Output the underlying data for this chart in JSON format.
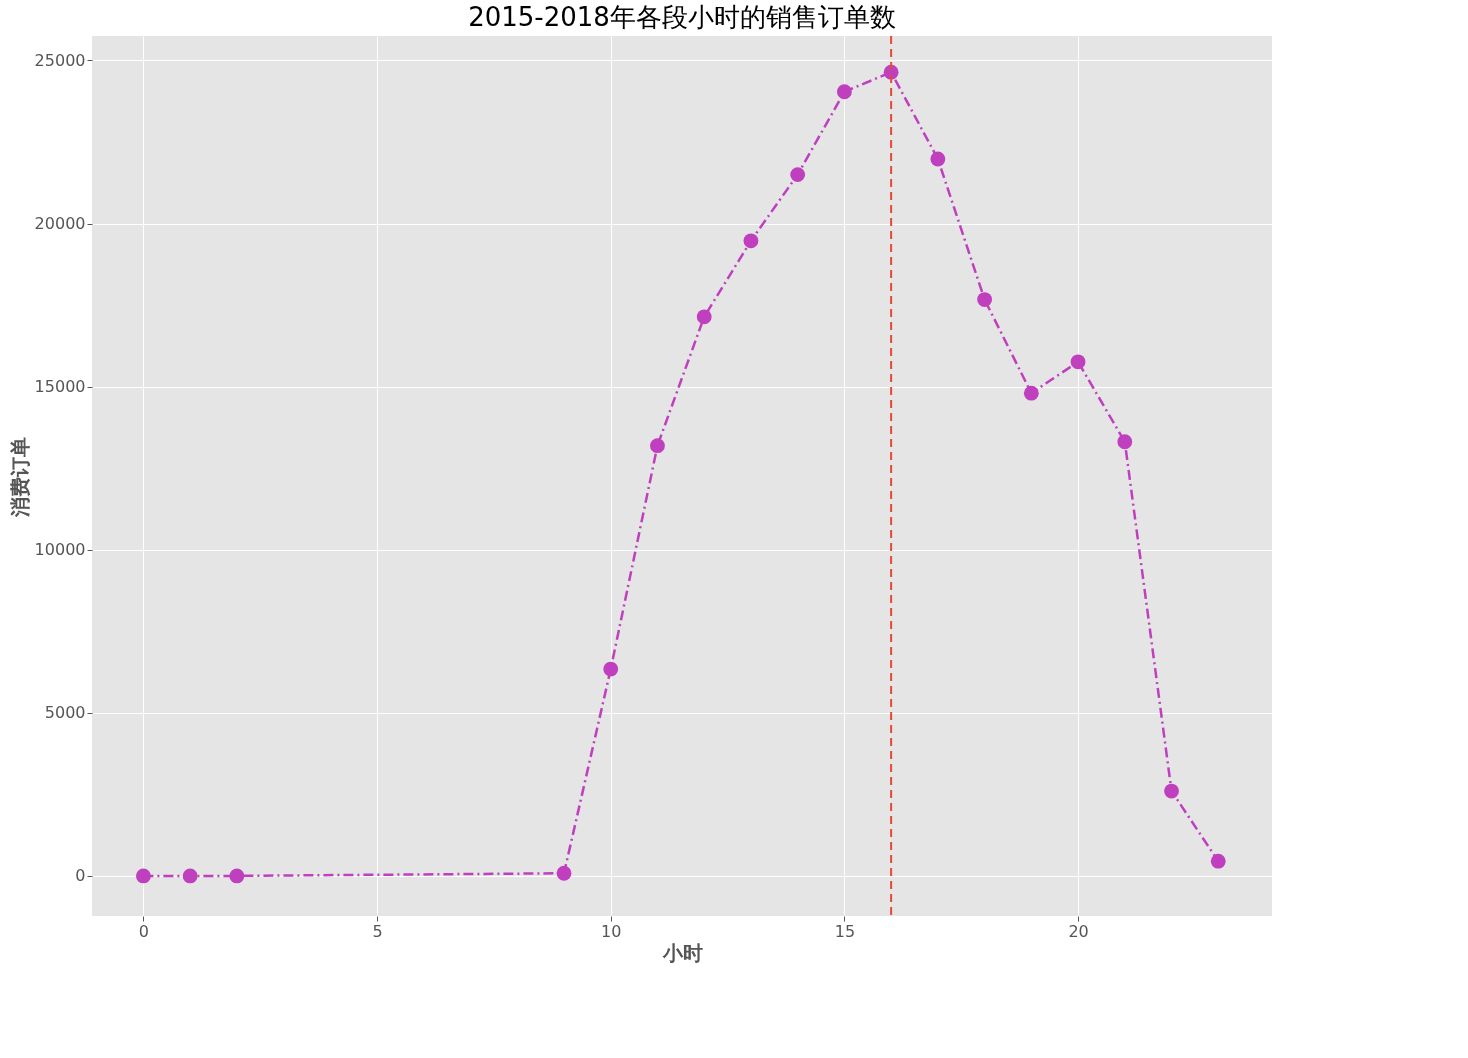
{
  "chart_data": {
    "type": "line",
    "title": "2015-2018年各段小时的销售订单数",
    "xlabel": "小时",
    "ylabel": "消费订单",
    "x": [
      0,
      1,
      2,
      9,
      10,
      11,
      12,
      13,
      14,
      15,
      16,
      17,
      18,
      19,
      20,
      21,
      22,
      23
    ],
    "series": [
      {
        "color": "#bf3fbf",
        "values": [
          0,
          0,
          0,
          80,
          6340,
          13190,
          17140,
          19470,
          21500,
          24040,
          24640,
          21980,
          17670,
          14800,
          15760,
          13310,
          2600,
          450
        ]
      }
    ],
    "xlim": [
      -1.1,
      24.15
    ],
    "ylim": [
      -1230,
      25750
    ],
    "xticks": [
      0,
      5,
      10,
      15,
      20
    ],
    "yticks": [
      0,
      5000,
      10000,
      15000,
      20000,
      25000
    ],
    "ref_lines": [
      {
        "axis": "x",
        "value": 16,
        "color": "#e24a33",
        "line_style": "dashed"
      }
    ],
    "grid": true,
    "marker": "circle",
    "line_style": "dashdot"
  }
}
